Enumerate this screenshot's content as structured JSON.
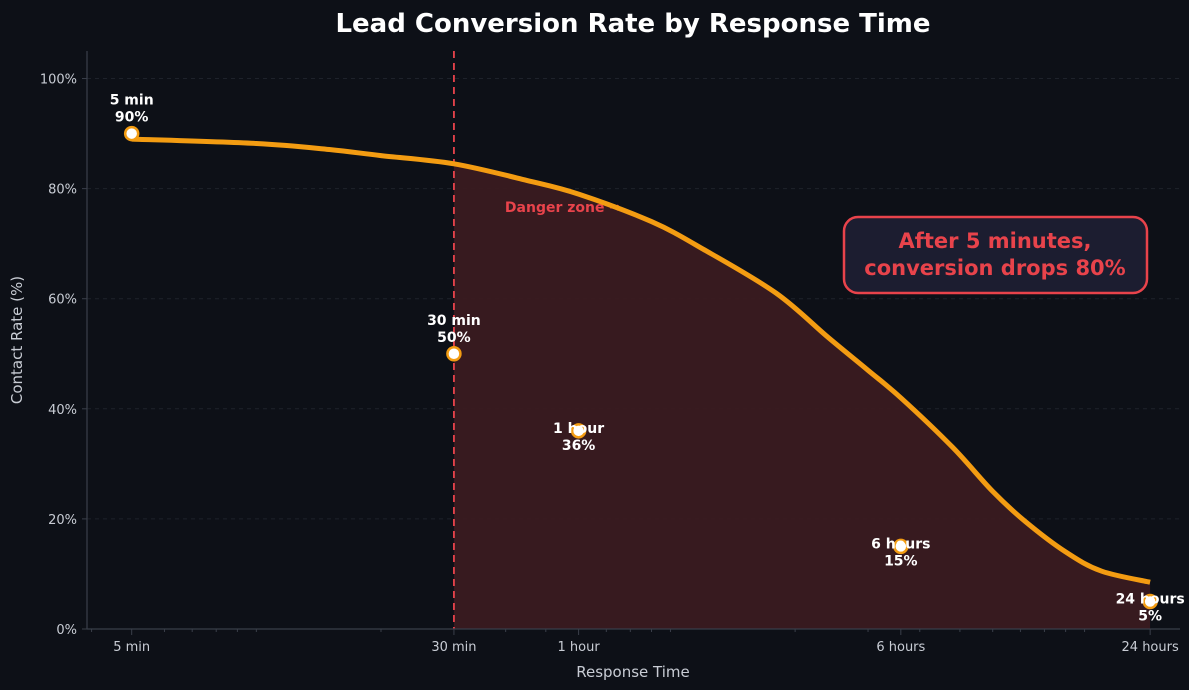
{
  "chart_data": {
    "type": "line",
    "title": "Lead Conversion Rate by Response Time",
    "xlabel": "Response Time",
    "ylabel": "Contact Rate (%)",
    "x_scale": "log",
    "x_unit": "minutes",
    "xlim_minutes": [
      3.9,
      1700
    ],
    "ylim": [
      0,
      105
    ],
    "y_ticks": [
      0,
      20,
      40,
      60,
      80,
      100
    ],
    "y_tick_labels": [
      "0%",
      "20%",
      "40%",
      "60%",
      "80%",
      "100%"
    ],
    "grid": "horizontal-dashed",
    "points": [
      {
        "minutes": 5,
        "label": "5 min",
        "value": 90,
        "value_label": "90%"
      },
      {
        "minutes": 30,
        "label": "30 min",
        "value": 50,
        "value_label": "50%"
      },
      {
        "minutes": 60,
        "label": "1 hour",
        "value": 36,
        "value_label": "36%"
      },
      {
        "minutes": 360,
        "label": "6 hours",
        "value": 15,
        "value_label": "15%"
      },
      {
        "minutes": 1440,
        "label": "24 hours",
        "value": 5,
        "value_label": "5%"
      }
    ],
    "trend_curve": [
      {
        "minutes": 5,
        "value": 89
      },
      {
        "minutes": 10,
        "value": 88.2
      },
      {
        "minutes": 15,
        "value": 87.1
      },
      {
        "minutes": 20,
        "value": 86
      },
      {
        "minutes": 30,
        "value": 84.5
      },
      {
        "minutes": 45,
        "value": 81.5
      },
      {
        "minutes": 60,
        "value": 79
      },
      {
        "minutes": 90,
        "value": 74
      },
      {
        "minutes": 120,
        "value": 69
      },
      {
        "minutes": 180,
        "value": 61
      },
      {
        "minutes": 240,
        "value": 53
      },
      {
        "minutes": 300,
        "value": 47
      },
      {
        "minutes": 360,
        "value": 42
      },
      {
        "minutes": 480,
        "value": 33
      },
      {
        "minutes": 600,
        "value": 25
      },
      {
        "minutes": 720,
        "value": 19.5
      },
      {
        "minutes": 900,
        "value": 14
      },
      {
        "minutes": 1100,
        "value": 10.5
      },
      {
        "minutes": 1440,
        "value": 8.5
      }
    ],
    "threshold_minutes": 30,
    "danger_zone_label": "Danger zone →",
    "annotation": {
      "line1": "After 5 minutes,",
      "line2": "conversion drops 80%"
    },
    "colors": {
      "background": "#0d1017",
      "line": "#f39c12",
      "danger": "#e8434b",
      "danger_fill": "#3a1b20",
      "callout_bg": "#1c1d30",
      "marker_fill": "#ffffff",
      "axis": "#3a3f4a",
      "grid": "#1e222b"
    }
  }
}
